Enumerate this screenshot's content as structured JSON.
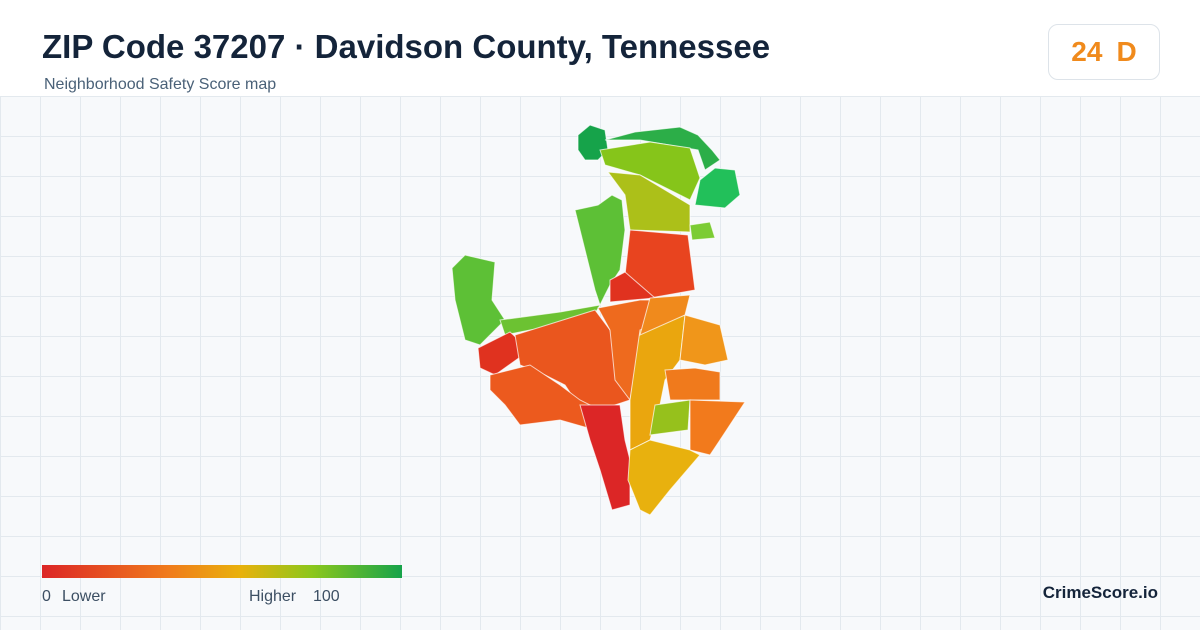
{
  "header": {
    "title": "ZIP Code 37207 · Davidson County, Tennessee",
    "subtitle": "Neighborhood Safety Score map"
  },
  "badge": {
    "score": "24",
    "grade": "D"
  },
  "legend": {
    "min": "0",
    "min_label": "Lower",
    "max_label": "Higher",
    "max": "100"
  },
  "brand": "CrimeScore.io"
}
